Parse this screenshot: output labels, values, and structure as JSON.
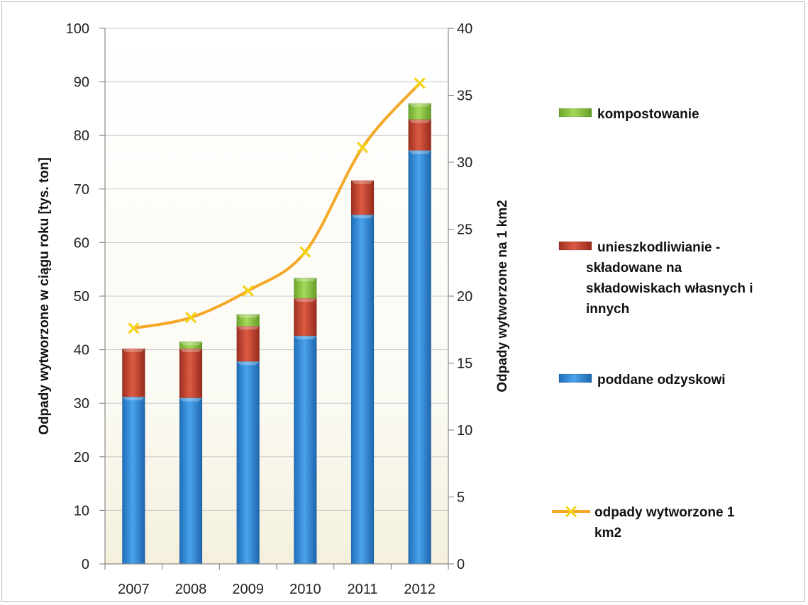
{
  "chart_data": {
    "type": "bar",
    "stacked": true,
    "title": "",
    "categories": [
      "2007",
      "2008",
      "2009",
      "2010",
      "2011",
      "2012"
    ],
    "series": [
      {
        "name": "poddane odzyskowi",
        "kind": "bar",
        "axis": "left",
        "color": "#2f86d3",
        "values": [
          31.2,
          31.0,
          37.8,
          42.6,
          65.2,
          77.2
        ]
      },
      {
        "name": "unieszkodliwianie - składowane na składowiskach własnych i innych",
        "kind": "bar",
        "axis": "left",
        "color": "#c3402c",
        "values": [
          9.0,
          9.2,
          6.6,
          7.0,
          6.4,
          5.8
        ]
      },
      {
        "name": "kompostowanie",
        "kind": "bar",
        "axis": "left",
        "color": "#8cc63f",
        "values": [
          0.0,
          1.3,
          2.2,
          3.8,
          0.0,
          3.0
        ]
      },
      {
        "name": "odpady wytworzone 1 km2",
        "kind": "line",
        "axis": "right",
        "color": "#f4a826",
        "values": [
          17.6,
          18.4,
          20.4,
          23.3,
          31.1,
          35.9
        ]
      }
    ],
    "ylabel": "Odpady wytworzone w ciągu roku [tys. ton]",
    "y2label": "Odpady wytworzone na  1 km2",
    "ylim": [
      0,
      100
    ],
    "y2lim": [
      0,
      40
    ],
    "yticks": [
      "0",
      "10",
      "20",
      "30",
      "40",
      "50",
      "60",
      "70",
      "80",
      "90",
      "100"
    ],
    "y2ticks": [
      "0",
      "5",
      "10",
      "15",
      "20",
      "25",
      "30",
      "35",
      "40"
    ],
    "grid": true,
    "legend_position": "right",
    "legend": [
      {
        "series": "kompostowanie",
        "lines": [
          "kompostowanie"
        ]
      },
      {
        "series": "unieszkodliwianie - składowane na składowiskach własnych i innych",
        "lines": [
          "unieszkodliwianie -",
          "składowane na",
          "składowiskach własnych i",
          "innych"
        ]
      },
      {
        "series": "poddane odzyskowi",
        "lines": [
          "poddane odzyskowi"
        ]
      },
      {
        "series": "odpady wytworzone 1 km2",
        "lines": [
          "odpady wytworzone 1",
          "km2"
        ]
      }
    ]
  }
}
